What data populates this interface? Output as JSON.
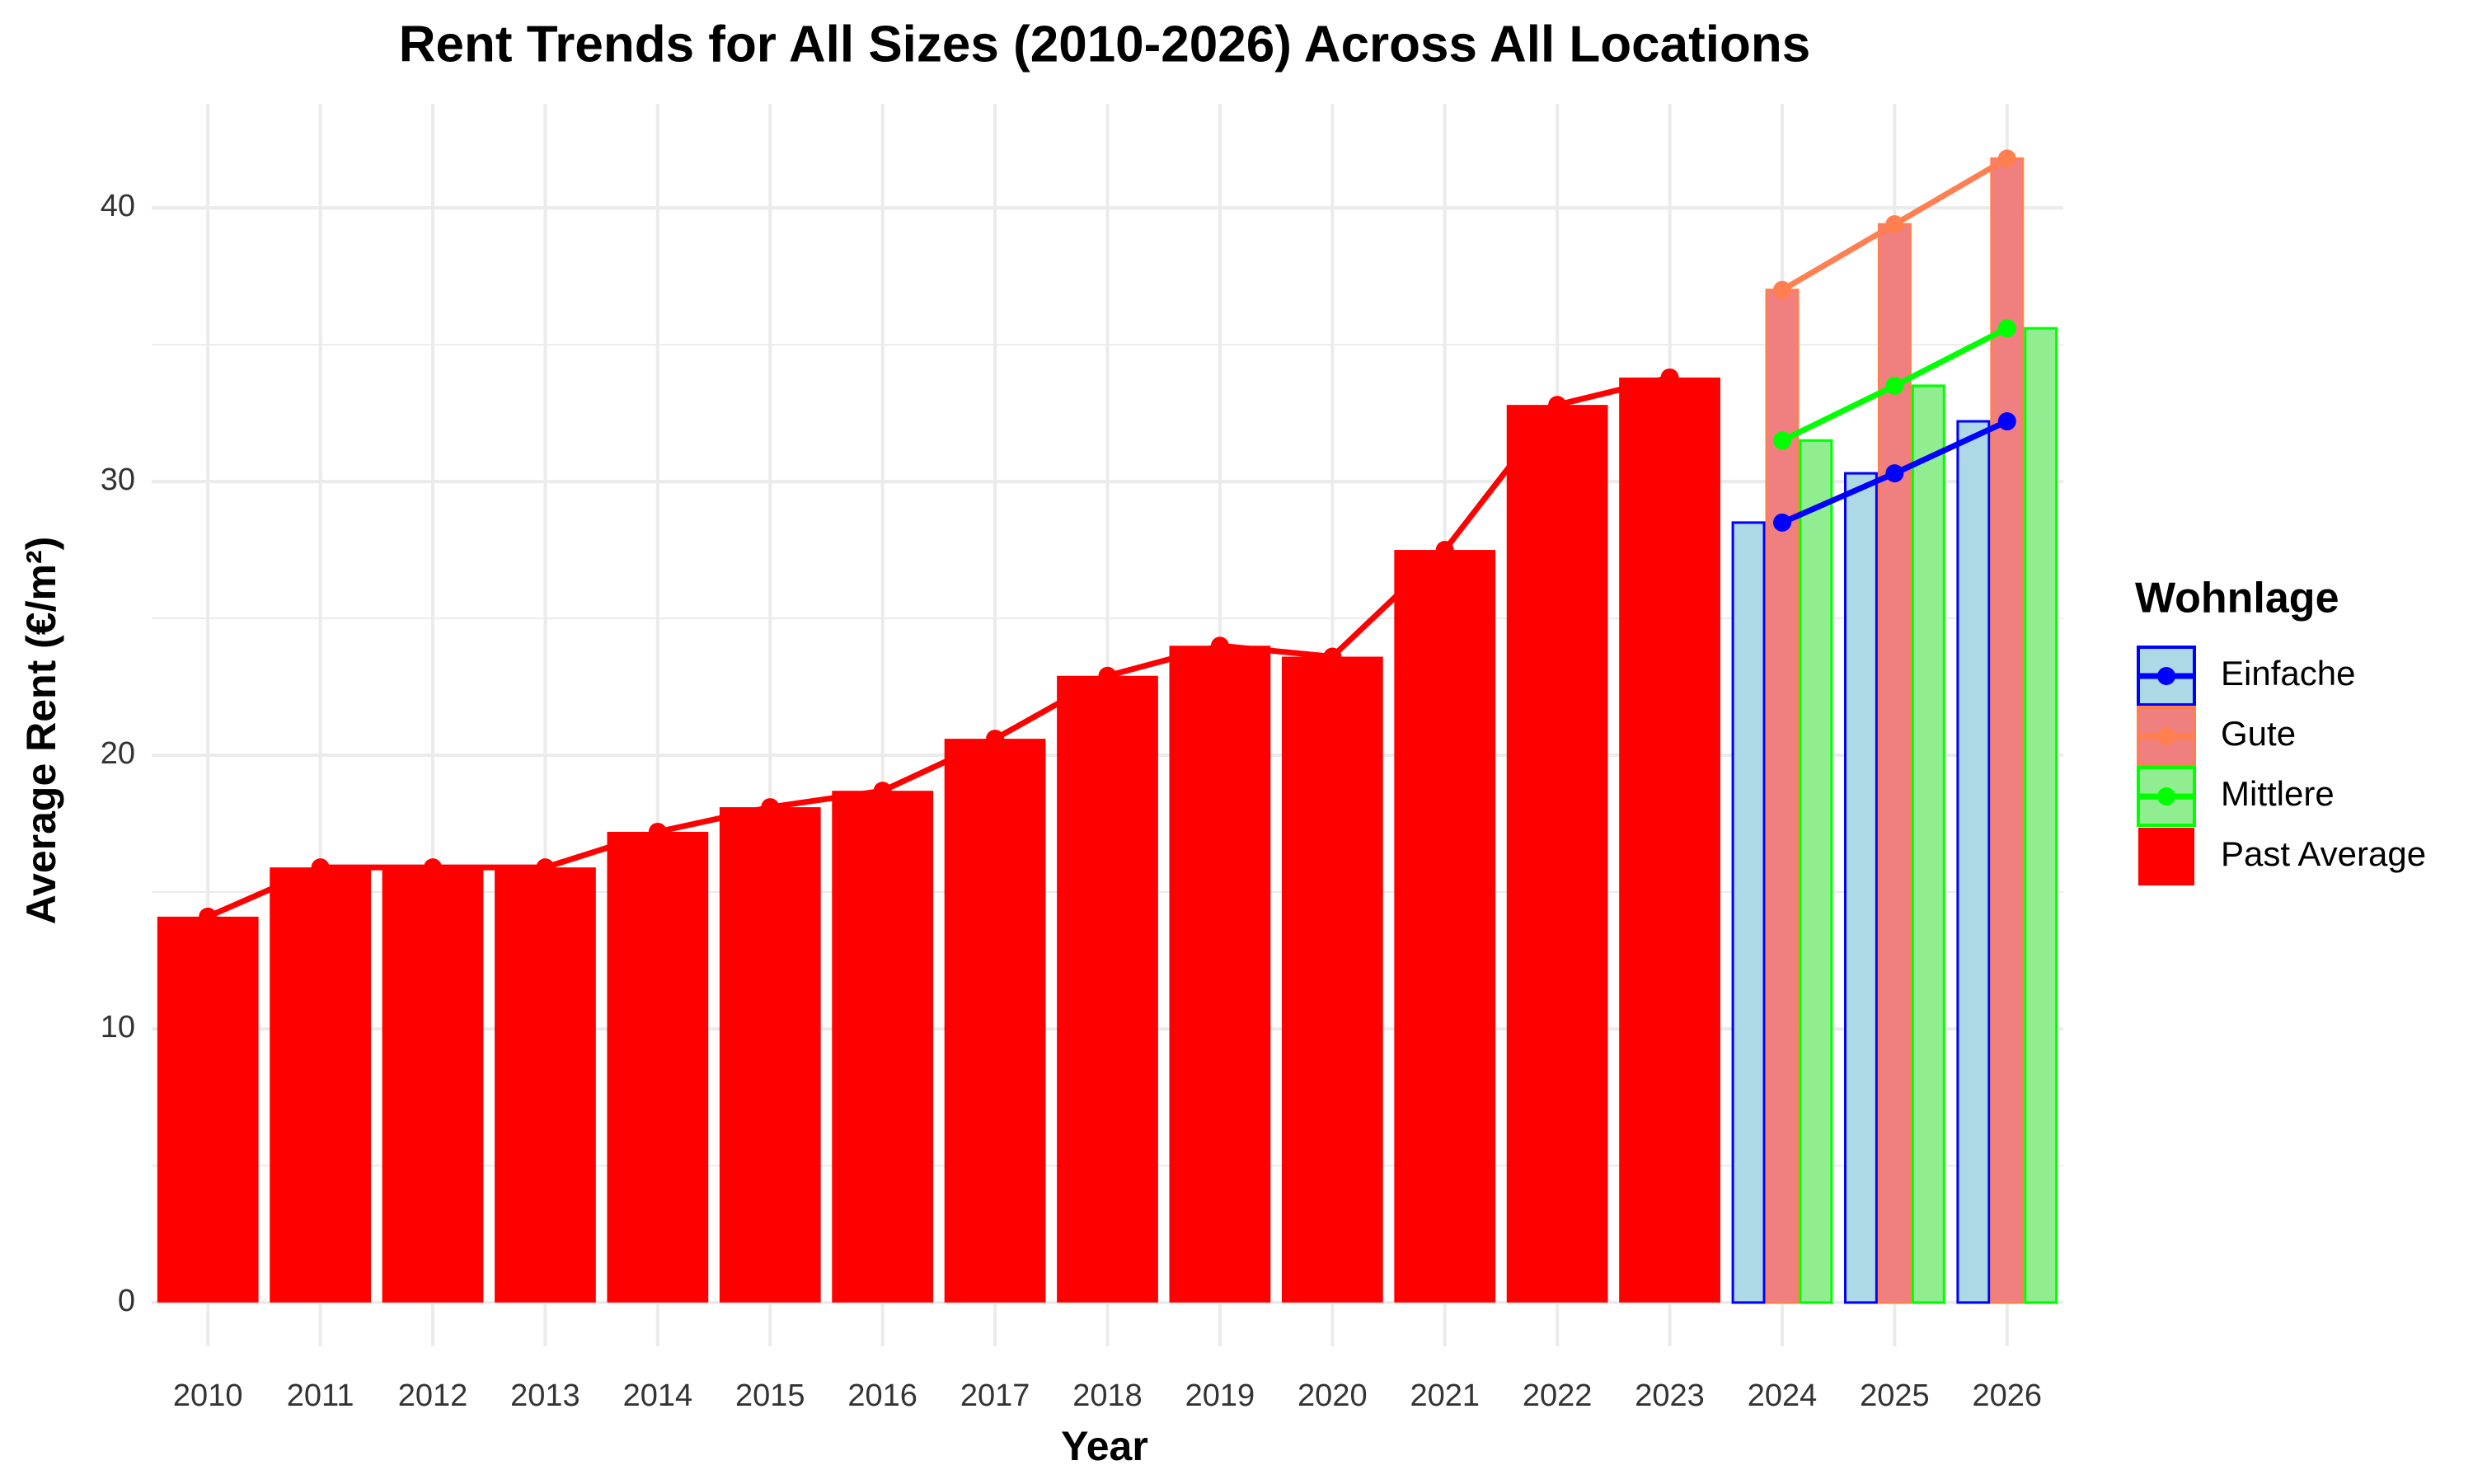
{
  "chart_data": {
    "type": "bar",
    "title": "Rent Trends for All Sizes (2010-2026) Across All Locations",
    "x_label": "Year",
    "y_label": "Average Rent (€/m²)",
    "legend_title": "Wohnlage",
    "legend_position": "right",
    "grid": true,
    "categories": [
      "2010",
      "2011",
      "2012",
      "2013",
      "2014",
      "2015",
      "2016",
      "2017",
      "2018",
      "2019",
      "2020",
      "2021",
      "2022",
      "2023",
      "2024",
      "2025",
      "2026"
    ],
    "series": [
      {
        "name": "Einfache",
        "color": "#0000ff",
        "fill": "#add8e6",
        "dodge": true,
        "values": [
          null,
          null,
          null,
          null,
          null,
          null,
          null,
          null,
          null,
          null,
          null,
          null,
          null,
          null,
          28.5,
          30.3,
          32.2
        ]
      },
      {
        "name": "Gute",
        "color": "#ff7f50",
        "fill": "#f08080",
        "dodge": true,
        "values": [
          null,
          null,
          null,
          null,
          null,
          null,
          null,
          null,
          null,
          null,
          null,
          null,
          null,
          null,
          37.0,
          39.4,
          41.8
        ]
      },
      {
        "name": "Mittlere",
        "color": "#00ff00",
        "fill": "#90ee90",
        "dodge": true,
        "values": [
          null,
          null,
          null,
          null,
          null,
          null,
          null,
          null,
          null,
          null,
          null,
          null,
          null,
          null,
          31.5,
          33.5,
          35.6
        ]
      },
      {
        "name": "Past Average",
        "color": "#ff0000",
        "fill": "#ff0000",
        "dodge": false,
        "values": [
          14.1,
          15.9,
          15.9,
          15.9,
          17.2,
          18.1,
          18.7,
          20.6,
          22.9,
          24.0,
          23.6,
          27.5,
          32.8,
          33.8,
          null,
          null,
          null
        ]
      }
    ],
    "ylim": [
      -1.6,
      43.8
    ],
    "yticks": [
      0,
      10,
      20,
      30,
      40
    ]
  }
}
